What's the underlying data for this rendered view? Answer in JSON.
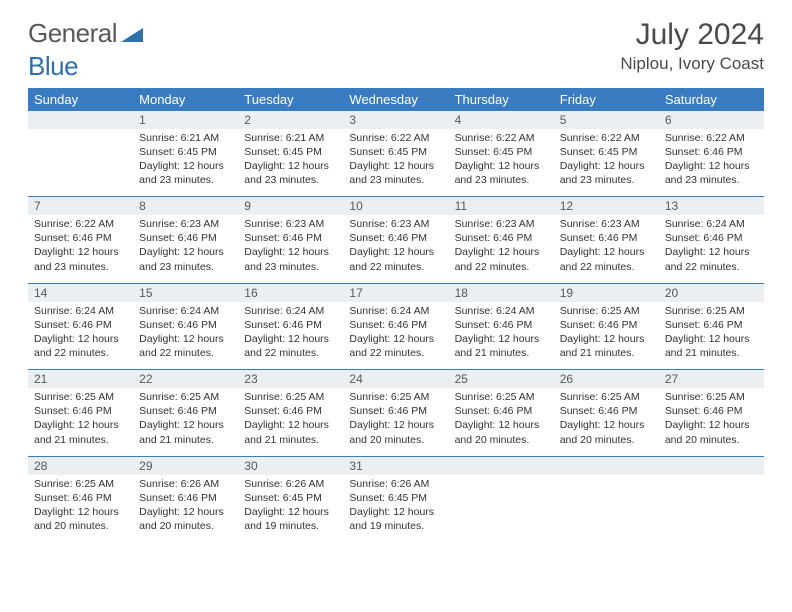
{
  "brand": {
    "part1": "General",
    "part2": "Blue"
  },
  "title": "July 2024",
  "location": "Niplou, Ivory Coast",
  "colors": {
    "header_bg": "#3a7cc2",
    "header_text": "#ffffff",
    "daynum_bg": "#eceff1",
    "text": "#333333",
    "rule": "#3a7cc2",
    "brand_gray": "#585858",
    "brand_blue": "#2f6fab"
  },
  "weekdays": [
    "Sunday",
    "Monday",
    "Tuesday",
    "Wednesday",
    "Thursday",
    "Friday",
    "Saturday"
  ],
  "grid": [
    [
      {
        "n": "",
        "sr": "",
        "ss": "",
        "dl": ""
      },
      {
        "n": "1",
        "sr": "Sunrise: 6:21 AM",
        "ss": "Sunset: 6:45 PM",
        "dl": "Daylight: 12 hours and 23 minutes."
      },
      {
        "n": "2",
        "sr": "Sunrise: 6:21 AM",
        "ss": "Sunset: 6:45 PM",
        "dl": "Daylight: 12 hours and 23 minutes."
      },
      {
        "n": "3",
        "sr": "Sunrise: 6:22 AM",
        "ss": "Sunset: 6:45 PM",
        "dl": "Daylight: 12 hours and 23 minutes."
      },
      {
        "n": "4",
        "sr": "Sunrise: 6:22 AM",
        "ss": "Sunset: 6:45 PM",
        "dl": "Daylight: 12 hours and 23 minutes."
      },
      {
        "n": "5",
        "sr": "Sunrise: 6:22 AM",
        "ss": "Sunset: 6:45 PM",
        "dl": "Daylight: 12 hours and 23 minutes."
      },
      {
        "n": "6",
        "sr": "Sunrise: 6:22 AM",
        "ss": "Sunset: 6:46 PM",
        "dl": "Daylight: 12 hours and 23 minutes."
      }
    ],
    [
      {
        "n": "7",
        "sr": "Sunrise: 6:22 AM",
        "ss": "Sunset: 6:46 PM",
        "dl": "Daylight: 12 hours and 23 minutes."
      },
      {
        "n": "8",
        "sr": "Sunrise: 6:23 AM",
        "ss": "Sunset: 6:46 PM",
        "dl": "Daylight: 12 hours and 23 minutes."
      },
      {
        "n": "9",
        "sr": "Sunrise: 6:23 AM",
        "ss": "Sunset: 6:46 PM",
        "dl": "Daylight: 12 hours and 23 minutes."
      },
      {
        "n": "10",
        "sr": "Sunrise: 6:23 AM",
        "ss": "Sunset: 6:46 PM",
        "dl": "Daylight: 12 hours and 22 minutes."
      },
      {
        "n": "11",
        "sr": "Sunrise: 6:23 AM",
        "ss": "Sunset: 6:46 PM",
        "dl": "Daylight: 12 hours and 22 minutes."
      },
      {
        "n": "12",
        "sr": "Sunrise: 6:23 AM",
        "ss": "Sunset: 6:46 PM",
        "dl": "Daylight: 12 hours and 22 minutes."
      },
      {
        "n": "13",
        "sr": "Sunrise: 6:24 AM",
        "ss": "Sunset: 6:46 PM",
        "dl": "Daylight: 12 hours and 22 minutes."
      }
    ],
    [
      {
        "n": "14",
        "sr": "Sunrise: 6:24 AM",
        "ss": "Sunset: 6:46 PM",
        "dl": "Daylight: 12 hours and 22 minutes."
      },
      {
        "n": "15",
        "sr": "Sunrise: 6:24 AM",
        "ss": "Sunset: 6:46 PM",
        "dl": "Daylight: 12 hours and 22 minutes."
      },
      {
        "n": "16",
        "sr": "Sunrise: 6:24 AM",
        "ss": "Sunset: 6:46 PM",
        "dl": "Daylight: 12 hours and 22 minutes."
      },
      {
        "n": "17",
        "sr": "Sunrise: 6:24 AM",
        "ss": "Sunset: 6:46 PM",
        "dl": "Daylight: 12 hours and 22 minutes."
      },
      {
        "n": "18",
        "sr": "Sunrise: 6:24 AM",
        "ss": "Sunset: 6:46 PM",
        "dl": "Daylight: 12 hours and 21 minutes."
      },
      {
        "n": "19",
        "sr": "Sunrise: 6:25 AM",
        "ss": "Sunset: 6:46 PM",
        "dl": "Daylight: 12 hours and 21 minutes."
      },
      {
        "n": "20",
        "sr": "Sunrise: 6:25 AM",
        "ss": "Sunset: 6:46 PM",
        "dl": "Daylight: 12 hours and 21 minutes."
      }
    ],
    [
      {
        "n": "21",
        "sr": "Sunrise: 6:25 AM",
        "ss": "Sunset: 6:46 PM",
        "dl": "Daylight: 12 hours and 21 minutes."
      },
      {
        "n": "22",
        "sr": "Sunrise: 6:25 AM",
        "ss": "Sunset: 6:46 PM",
        "dl": "Daylight: 12 hours and 21 minutes."
      },
      {
        "n": "23",
        "sr": "Sunrise: 6:25 AM",
        "ss": "Sunset: 6:46 PM",
        "dl": "Daylight: 12 hours and 21 minutes."
      },
      {
        "n": "24",
        "sr": "Sunrise: 6:25 AM",
        "ss": "Sunset: 6:46 PM",
        "dl": "Daylight: 12 hours and 20 minutes."
      },
      {
        "n": "25",
        "sr": "Sunrise: 6:25 AM",
        "ss": "Sunset: 6:46 PM",
        "dl": "Daylight: 12 hours and 20 minutes."
      },
      {
        "n": "26",
        "sr": "Sunrise: 6:25 AM",
        "ss": "Sunset: 6:46 PM",
        "dl": "Daylight: 12 hours and 20 minutes."
      },
      {
        "n": "27",
        "sr": "Sunrise: 6:25 AM",
        "ss": "Sunset: 6:46 PM",
        "dl": "Daylight: 12 hours and 20 minutes."
      }
    ],
    [
      {
        "n": "28",
        "sr": "Sunrise: 6:25 AM",
        "ss": "Sunset: 6:46 PM",
        "dl": "Daylight: 12 hours and 20 minutes."
      },
      {
        "n": "29",
        "sr": "Sunrise: 6:26 AM",
        "ss": "Sunset: 6:46 PM",
        "dl": "Daylight: 12 hours and 20 minutes."
      },
      {
        "n": "30",
        "sr": "Sunrise: 6:26 AM",
        "ss": "Sunset: 6:45 PM",
        "dl": "Daylight: 12 hours and 19 minutes."
      },
      {
        "n": "31",
        "sr": "Sunrise: 6:26 AM",
        "ss": "Sunset: 6:45 PM",
        "dl": "Daylight: 12 hours and 19 minutes."
      },
      {
        "n": "",
        "sr": "",
        "ss": "",
        "dl": ""
      },
      {
        "n": "",
        "sr": "",
        "ss": "",
        "dl": ""
      },
      {
        "n": "",
        "sr": "",
        "ss": "",
        "dl": ""
      }
    ]
  ]
}
